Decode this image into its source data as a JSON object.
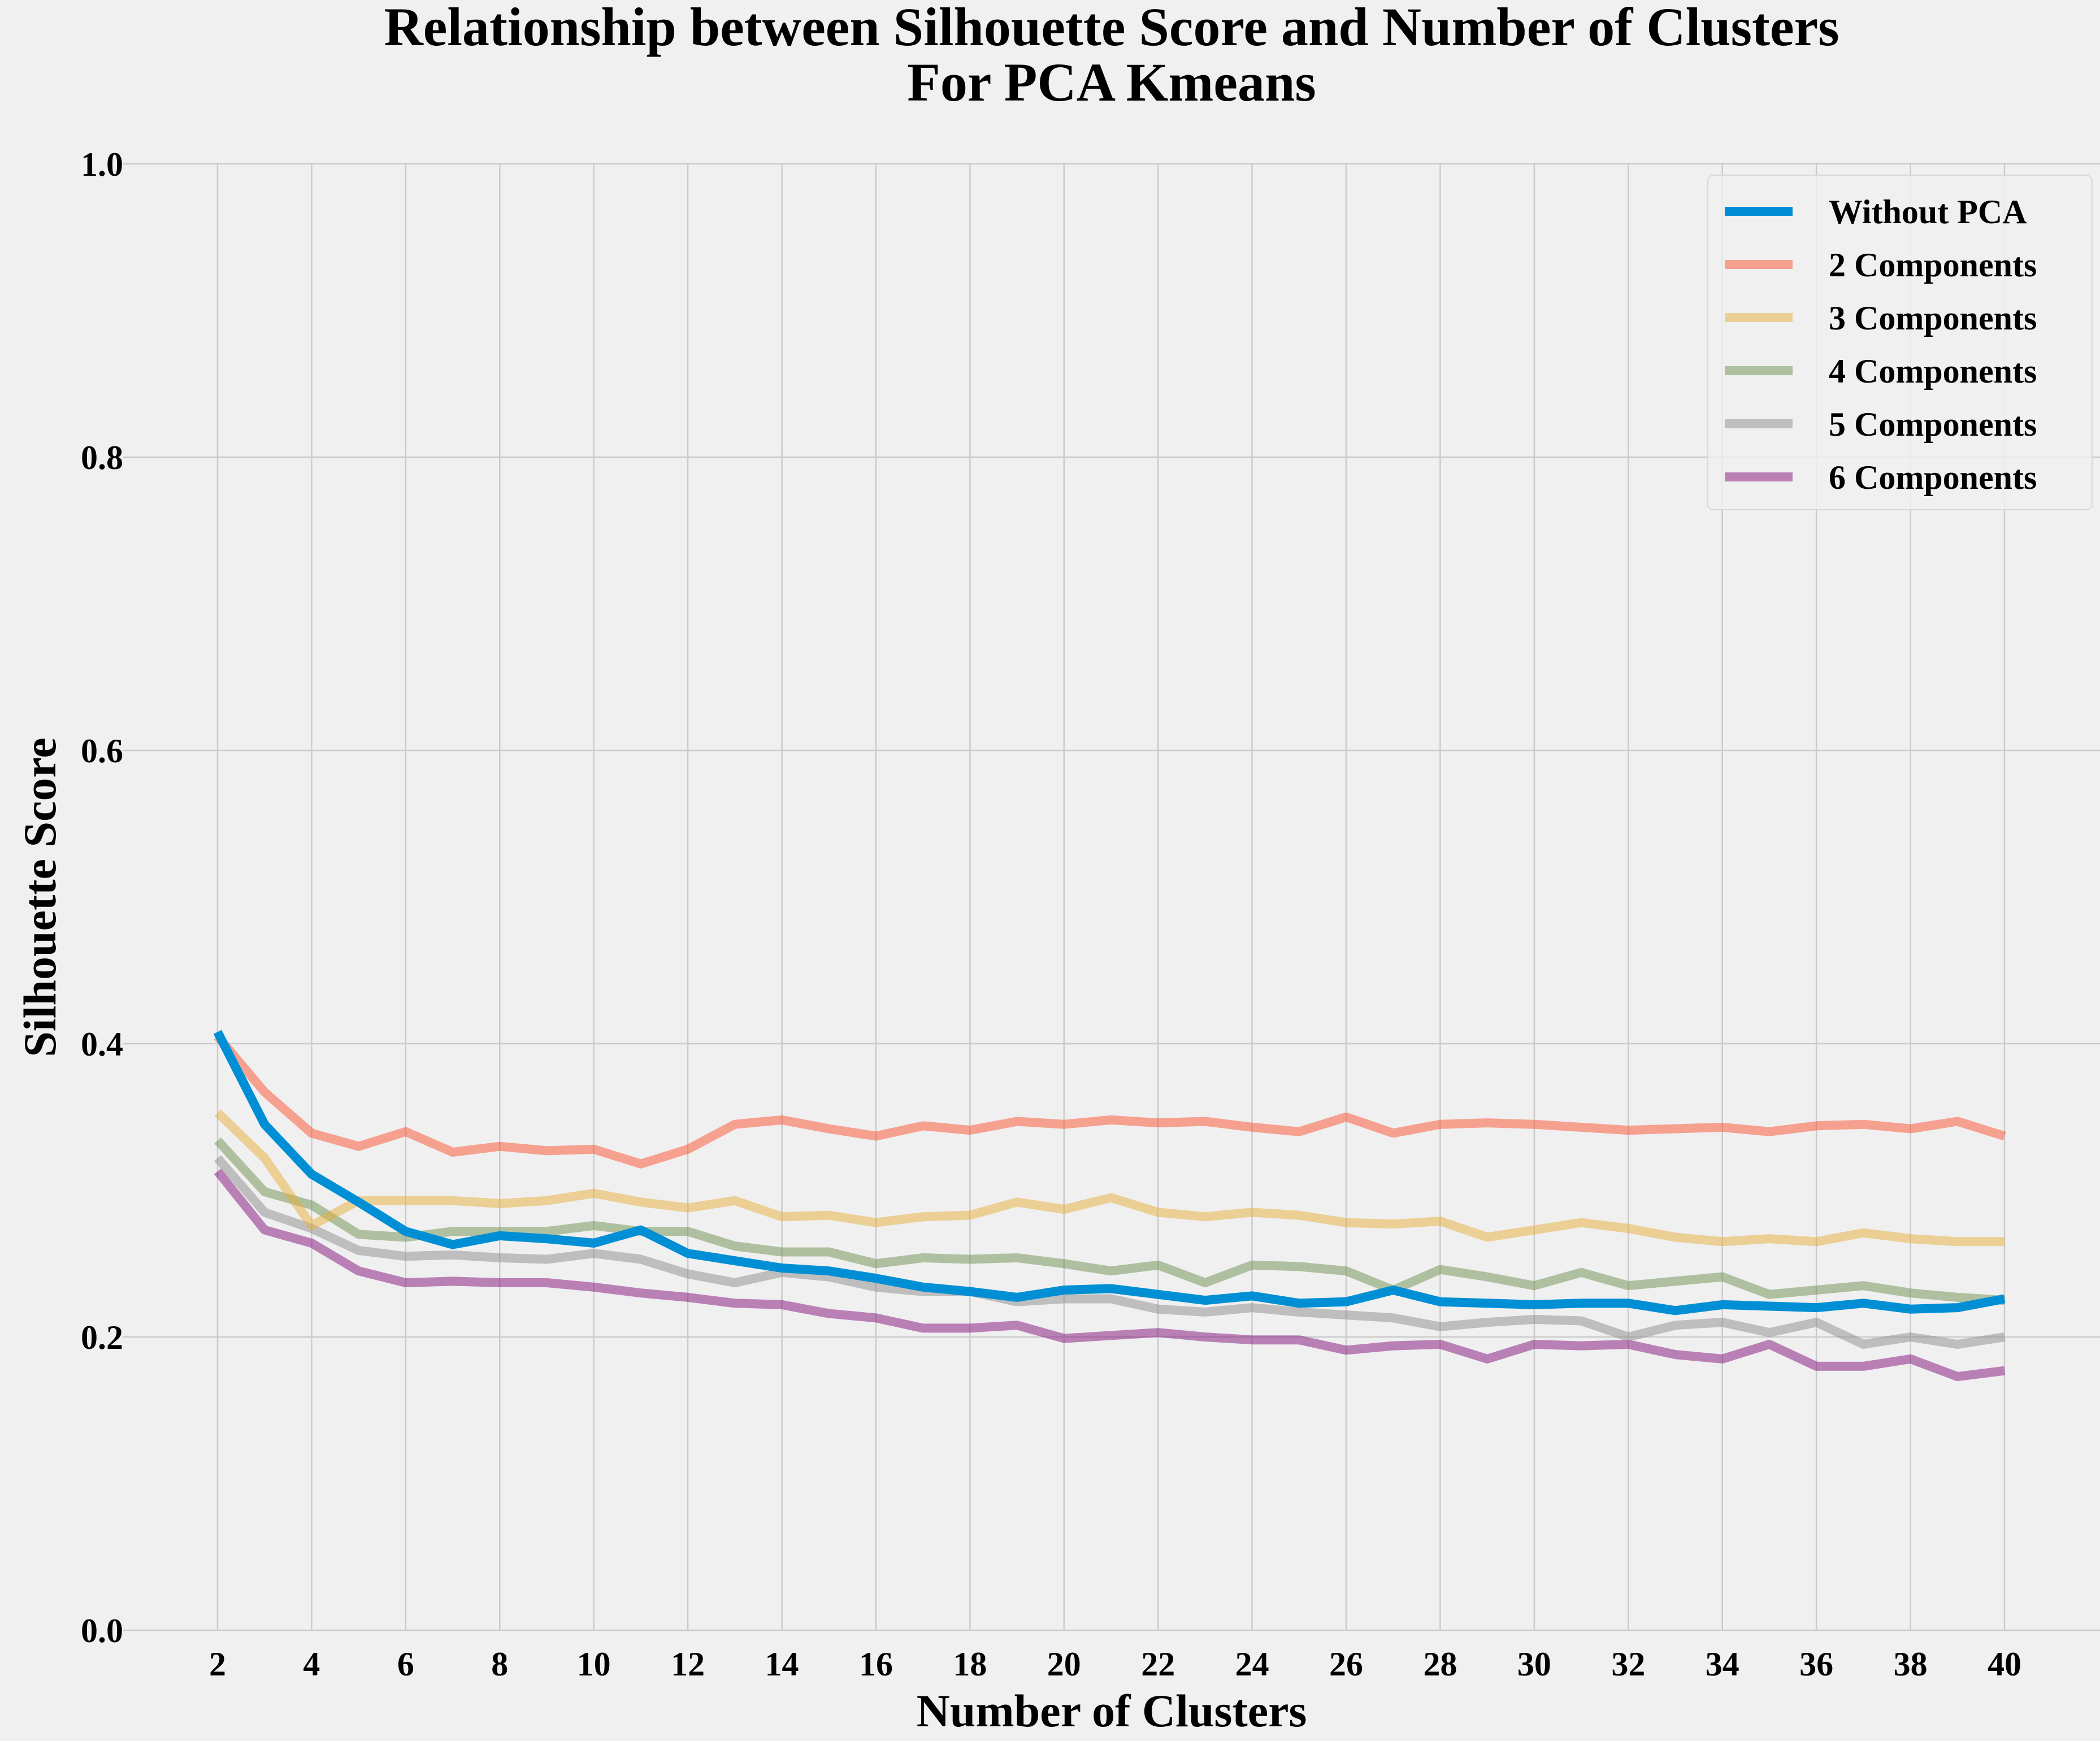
{
  "chart_data": {
    "type": "line",
    "title": "Relationship between Silhouette Score and Number of Clusters",
    "subtitle": "For PCA Kmeans",
    "xlabel": "Number of Clusters",
    "ylabel": "Silhouette Score",
    "xlim": [
      2,
      40
    ],
    "ylim": [
      0.0,
      1.0
    ],
    "xticks": [
      "2",
      "4",
      "6",
      "8",
      "10",
      "12",
      "14",
      "16",
      "18",
      "20",
      "22",
      "24",
      "26",
      "28",
      "30",
      "32",
      "34",
      "36",
      "38",
      "40"
    ],
    "yticks": [
      "0.0",
      "0.2",
      "0.4",
      "0.6",
      "0.8",
      "1.0"
    ],
    "grid": true,
    "legend_position": "top-right",
    "x": [
      2,
      3,
      4,
      5,
      6,
      7,
      8,
      9,
      10,
      11,
      12,
      13,
      14,
      15,
      16,
      17,
      18,
      19,
      20,
      21,
      22,
      23,
      24,
      25,
      26,
      27,
      28,
      29,
      30,
      31,
      32,
      33,
      34,
      35,
      36,
      37,
      38,
      39,
      40
    ],
    "series": [
      {
        "name": "Without PCA",
        "color": "#008fd5",
        "opacity": 1.0,
        "values": [
          0.408,
          0.345,
          0.311,
          0.292,
          0.272,
          0.263,
          0.269,
          0.267,
          0.264,
          0.273,
          0.257,
          0.252,
          0.247,
          0.245,
          0.24,
          0.234,
          0.231,
          0.227,
          0.232,
          0.233,
          0.229,
          0.225,
          0.228,
          0.223,
          0.224,
          0.232,
          0.224,
          0.223,
          0.222,
          0.223,
          0.223,
          0.218,
          0.222,
          0.221,
          0.22,
          0.223,
          0.219,
          0.22,
          0.226
        ]
      },
      {
        "name": "2 Components",
        "color": "#fc4f30",
        "opacity": 0.5,
        "values": [
          0.405,
          0.367,
          0.339,
          0.33,
          0.34,
          0.326,
          0.33,
          0.327,
          0.328,
          0.318,
          0.328,
          0.345,
          0.348,
          0.342,
          0.337,
          0.344,
          0.341,
          0.347,
          0.345,
          0.348,
          0.346,
          0.347,
          0.343,
          0.34,
          0.35,
          0.339,
          0.345,
          0.346,
          0.345,
          0.343,
          0.341,
          0.342,
          0.343,
          0.34,
          0.344,
          0.345,
          0.342,
          0.347,
          0.337
        ]
      },
      {
        "name": "3 Components",
        "color": "#e5ae38",
        "opacity": 0.5,
        "values": [
          0.353,
          0.322,
          0.276,
          0.293,
          0.293,
          0.293,
          0.291,
          0.293,
          0.298,
          0.292,
          0.288,
          0.293,
          0.282,
          0.283,
          0.278,
          0.282,
          0.283,
          0.292,
          0.287,
          0.295,
          0.285,
          0.282,
          0.285,
          0.283,
          0.278,
          0.277,
          0.279,
          0.268,
          0.273,
          0.278,
          0.274,
          0.268,
          0.265,
          0.267,
          0.265,
          0.271,
          0.267,
          0.265,
          0.265
        ]
      },
      {
        "name": "4 Components",
        "color": "#6d904f",
        "opacity": 0.5,
        "values": [
          0.334,
          0.299,
          0.29,
          0.27,
          0.268,
          0.272,
          0.272,
          0.272,
          0.276,
          0.272,
          0.272,
          0.262,
          0.258,
          0.258,
          0.25,
          0.254,
          0.253,
          0.254,
          0.25,
          0.245,
          0.249,
          0.237,
          0.249,
          0.248,
          0.245,
          0.232,
          0.246,
          0.241,
          0.235,
          0.244,
          0.235,
          0.238,
          0.241,
          0.229,
          0.232,
          0.235,
          0.23,
          0.227,
          0.225
        ]
      },
      {
        "name": "5 Components",
        "color": "#8b8b8b",
        "opacity": 0.5,
        "values": [
          0.322,
          0.285,
          0.274,
          0.259,
          0.255,
          0.256,
          0.254,
          0.253,
          0.257,
          0.253,
          0.243,
          0.237,
          0.244,
          0.241,
          0.234,
          0.231,
          0.231,
          0.224,
          0.226,
          0.226,
          0.219,
          0.217,
          0.22,
          0.217,
          0.215,
          0.213,
          0.207,
          0.21,
          0.212,
          0.211,
          0.2,
          0.208,
          0.21,
          0.203,
          0.21,
          0.195,
          0.2,
          0.195,
          0.2
        ]
      },
      {
        "name": "6 Components",
        "color": "#810f7c",
        "opacity": 0.5,
        "values": [
          0.313,
          0.273,
          0.264,
          0.245,
          0.237,
          0.238,
          0.237,
          0.237,
          0.234,
          0.23,
          0.227,
          0.223,
          0.222,
          0.216,
          0.213,
          0.206,
          0.206,
          0.208,
          0.199,
          0.201,
          0.203,
          0.2,
          0.198,
          0.198,
          0.191,
          0.194,
          0.195,
          0.185,
          0.195,
          0.194,
          0.195,
          0.188,
          0.185,
          0.195,
          0.18,
          0.18,
          0.185,
          0.173,
          0.177
        ]
      }
    ]
  }
}
